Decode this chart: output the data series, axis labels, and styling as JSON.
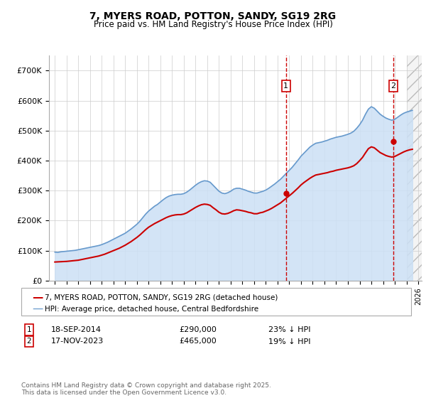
{
  "title_line1": "7, MYERS ROAD, POTTON, SANDY, SG19 2RG",
  "title_line2": "Price paid vs. HM Land Registry's House Price Index (HPI)",
  "background_color": "#ffffff",
  "plot_bg_color": "#ffffff",
  "grid_color": "#cccccc",
  "hpi_color": "#6699cc",
  "hpi_fill_color": "#cce0f5",
  "price_color": "#cc0000",
  "marker_color": "#cc0000",
  "vline_color": "#cc0000",
  "legend_label_price": "7, MYERS ROAD, POTTON, SANDY, SG19 2RG (detached house)",
  "legend_label_hpi": "HPI: Average price, detached house, Central Bedfordshire",
  "footer": "Contains HM Land Registry data © Crown copyright and database right 2025.\nThis data is licensed under the Open Government Licence v3.0.",
  "sale1_label": "1",
  "sale1_date": "18-SEP-2014",
  "sale1_price": "£290,000",
  "sale1_hpi": "23% ↓ HPI",
  "sale2_label": "2",
  "sale2_date": "17-NOV-2023",
  "sale2_price": "£465,000",
  "sale2_hpi": "19% ↓ HPI",
  "ylim_max": 750000,
  "yticks": [
    0,
    100000,
    200000,
    300000,
    400000,
    500000,
    600000,
    700000
  ],
  "ytick_labels": [
    "£0",
    "£100K",
    "£200K",
    "£300K",
    "£400K",
    "£500K",
    "£600K",
    "£700K"
  ],
  "sale1_x": 2014.72,
  "sale1_y": 290000,
  "sale2_x": 2023.88,
  "sale2_y": 465000,
  "future_shade_start": 2025.0,
  "xmin": 1994.5,
  "xmax": 2026.3,
  "hpi_x": [
    1995.0,
    1995.25,
    1995.5,
    1995.75,
    1996.0,
    1996.25,
    1996.5,
    1996.75,
    1997.0,
    1997.25,
    1997.5,
    1997.75,
    1998.0,
    1998.25,
    1998.5,
    1998.75,
    1999.0,
    1999.25,
    1999.5,
    1999.75,
    2000.0,
    2000.25,
    2000.5,
    2000.75,
    2001.0,
    2001.25,
    2001.5,
    2001.75,
    2002.0,
    2002.25,
    2002.5,
    2002.75,
    2003.0,
    2003.25,
    2003.5,
    2003.75,
    2004.0,
    2004.25,
    2004.5,
    2004.75,
    2005.0,
    2005.25,
    2005.5,
    2005.75,
    2006.0,
    2006.25,
    2006.5,
    2006.75,
    2007.0,
    2007.25,
    2007.5,
    2007.75,
    2008.0,
    2008.25,
    2008.5,
    2008.75,
    2009.0,
    2009.25,
    2009.5,
    2009.75,
    2010.0,
    2010.25,
    2010.5,
    2010.75,
    2011.0,
    2011.25,
    2011.5,
    2011.75,
    2012.0,
    2012.25,
    2012.5,
    2012.75,
    2013.0,
    2013.25,
    2013.5,
    2013.75,
    2014.0,
    2014.25,
    2014.5,
    2014.75,
    2015.0,
    2015.25,
    2015.5,
    2015.75,
    2016.0,
    2016.25,
    2016.5,
    2016.75,
    2017.0,
    2017.25,
    2017.5,
    2017.75,
    2018.0,
    2018.25,
    2018.5,
    2018.75,
    2019.0,
    2019.25,
    2019.5,
    2019.75,
    2020.0,
    2020.25,
    2020.5,
    2020.75,
    2021.0,
    2021.25,
    2021.5,
    2021.75,
    2022.0,
    2022.25,
    2022.5,
    2022.75,
    2023.0,
    2023.25,
    2023.5,
    2023.75,
    2024.0,
    2024.25,
    2024.5,
    2024.75,
    2025.0,
    2025.25,
    2025.5
  ],
  "hpi_y": [
    95000,
    94000,
    96000,
    97000,
    98000,
    99000,
    100000,
    101000,
    103000,
    105000,
    107000,
    109000,
    111000,
    113000,
    115000,
    117000,
    120000,
    124000,
    128000,
    133000,
    138000,
    143000,
    148000,
    153000,
    158000,
    165000,
    172000,
    180000,
    188000,
    198000,
    210000,
    222000,
    232000,
    240000,
    248000,
    254000,
    262000,
    270000,
    277000,
    282000,
    285000,
    287000,
    288000,
    288000,
    290000,
    295000,
    302000,
    310000,
    318000,
    325000,
    330000,
    333000,
    332000,
    328000,
    318000,
    308000,
    298000,
    292000,
    290000,
    293000,
    298000,
    305000,
    308000,
    308000,
    305000,
    302000,
    298000,
    295000,
    292000,
    292000,
    295000,
    298000,
    302000,
    308000,
    315000,
    322000,
    330000,
    338000,
    348000,
    358000,
    368000,
    378000,
    390000,
    402000,
    415000,
    425000,
    435000,
    445000,
    452000,
    458000,
    460000,
    462000,
    465000,
    468000,
    472000,
    475000,
    478000,
    480000,
    482000,
    485000,
    488000,
    492000,
    498000,
    508000,
    520000,
    535000,
    555000,
    572000,
    580000,
    575000,
    565000,
    555000,
    548000,
    542000,
    538000,
    535000,
    538000,
    545000,
    552000,
    558000,
    562000,
    565000,
    568000
  ],
  "price_x": [
    1995.0,
    1995.25,
    1995.5,
    1995.75,
    1996.0,
    1996.25,
    1996.5,
    1996.75,
    1997.0,
    1997.25,
    1997.5,
    1997.75,
    1998.0,
    1998.25,
    1998.5,
    1998.75,
    1999.0,
    1999.25,
    1999.5,
    1999.75,
    2000.0,
    2000.25,
    2000.5,
    2000.75,
    2001.0,
    2001.25,
    2001.5,
    2001.75,
    2002.0,
    2002.25,
    2002.5,
    2002.75,
    2003.0,
    2003.25,
    2003.5,
    2003.75,
    2004.0,
    2004.25,
    2004.5,
    2004.75,
    2005.0,
    2005.25,
    2005.5,
    2005.75,
    2006.0,
    2006.25,
    2006.5,
    2006.75,
    2007.0,
    2007.25,
    2007.5,
    2007.75,
    2008.0,
    2008.25,
    2008.5,
    2008.75,
    2009.0,
    2009.25,
    2009.5,
    2009.75,
    2010.0,
    2010.25,
    2010.5,
    2010.75,
    2011.0,
    2011.25,
    2011.5,
    2011.75,
    2012.0,
    2012.25,
    2012.5,
    2012.75,
    2013.0,
    2013.25,
    2013.5,
    2013.75,
    2014.0,
    2014.25,
    2014.5,
    2014.75,
    2015.0,
    2015.25,
    2015.5,
    2015.75,
    2016.0,
    2016.25,
    2016.5,
    2016.75,
    2017.0,
    2017.25,
    2017.5,
    2017.75,
    2018.0,
    2018.25,
    2018.5,
    2018.75,
    2019.0,
    2019.25,
    2019.5,
    2019.75,
    2020.0,
    2020.25,
    2020.5,
    2020.75,
    2021.0,
    2021.25,
    2021.5,
    2021.75,
    2022.0,
    2022.25,
    2022.5,
    2022.75,
    2023.0,
    2023.25,
    2023.5,
    2023.75,
    2024.0,
    2024.25,
    2024.5,
    2024.75,
    2025.0,
    2025.25,
    2025.5
  ],
  "price_y": [
    62000,
    62500,
    63000,
    63500,
    64000,
    65000,
    66000,
    67000,
    68000,
    70000,
    72000,
    74000,
    76000,
    78000,
    80000,
    82000,
    85000,
    88000,
    92000,
    96000,
    100000,
    104000,
    108000,
    113000,
    118000,
    124000,
    130000,
    137000,
    144000,
    152000,
    161000,
    170000,
    178000,
    184000,
    190000,
    195000,
    200000,
    205000,
    210000,
    214000,
    217000,
    219000,
    220000,
    220000,
    222000,
    226000,
    232000,
    238000,
    244000,
    249000,
    253000,
    255000,
    254000,
    251000,
    243000,
    236000,
    228000,
    223000,
    222000,
    224000,
    228000,
    233000,
    236000,
    235000,
    233000,
    231000,
    228000,
    226000,
    223000,
    223000,
    226000,
    228000,
    232000,
    236000,
    241000,
    247000,
    253000,
    259000,
    267000,
    275000,
    283000,
    291000,
    300000,
    309000,
    319000,
    327000,
    334000,
    341000,
    347000,
    352000,
    354000,
    356000,
    358000,
    360000,
    363000,
    365000,
    368000,
    370000,
    372000,
    374000,
    376000,
    379000,
    383000,
    390000,
    400000,
    411000,
    426000,
    440000,
    446000,
    443000,
    435000,
    427000,
    422000,
    417000,
    414000,
    412000,
    414000,
    419000,
    424000,
    429000,
    433000,
    436000,
    438000
  ]
}
